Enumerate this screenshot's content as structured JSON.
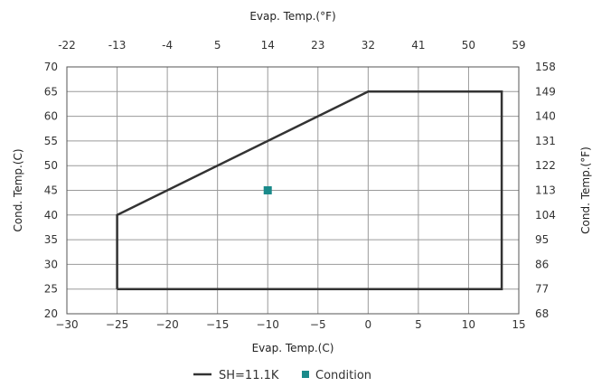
{
  "chart_data": {
    "type": "line",
    "x": {
      "label": "Evap. Temp.(C)",
      "range": [
        -30,
        15
      ],
      "ticks": [
        -30,
        -25,
        -20,
        -15,
        -10,
        -5,
        0,
        5,
        10,
        15
      ]
    },
    "y": {
      "label": "Cond. Temp.(C)",
      "range": [
        20,
        70
      ],
      "ticks": [
        20,
        25,
        30,
        35,
        40,
        45,
        50,
        55,
        60,
        65,
        70
      ]
    },
    "x2": {
      "label": "Evap. Temp.(°F)",
      "ticks": [
        -22,
        -13,
        -4,
        5,
        14,
        23,
        32,
        41,
        50,
        59
      ]
    },
    "y2": {
      "label": "Cond. Temp.(°F)",
      "ticks": [
        68,
        77,
        86,
        95,
        104,
        113,
        122,
        131,
        140,
        149,
        158
      ]
    },
    "grid": true,
    "series": [
      {
        "name": "SH=11.1K",
        "type": "line",
        "color": "#333333",
        "points": [
          [
            -25,
            25
          ],
          [
            -25,
            40
          ],
          [
            0,
            65
          ],
          [
            13.3,
            65
          ],
          [
            13.3,
            25
          ],
          [
            -25,
            25
          ]
        ]
      },
      {
        "name": "Condition",
        "type": "scatter",
        "color": "#1a8a8a",
        "points": [
          [
            -10,
            45
          ]
        ]
      }
    ],
    "legend": {
      "position": "bottom-center"
    }
  }
}
